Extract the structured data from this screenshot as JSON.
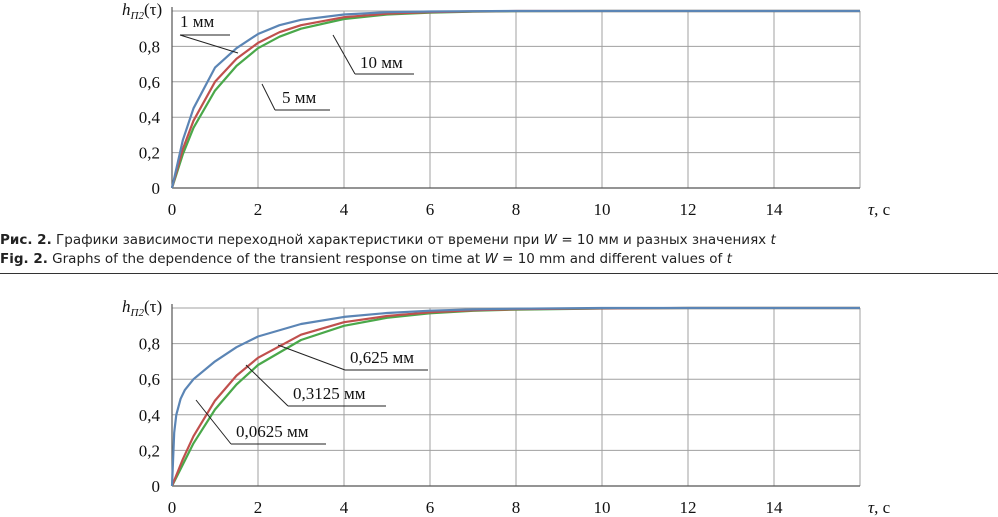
{
  "figures": [
    {
      "caption_ru": {
        "label": "Рис. 2.",
        "text_before": " Графики зависимости переходной характеристики от времени при ",
        "var1": "W",
        "text_mid": " = 10 мм и разных значениях ",
        "var2": "t"
      },
      "caption_en": {
        "label": "Fig. 2.",
        "text_before": " Graphs of the dependence of the transient response on time at ",
        "var1": "W",
        "text_mid": " = 10 mm and different values of ",
        "var2": "t"
      }
    }
  ],
  "colors": {
    "blue": "#5b85b5",
    "red": "#c0504d",
    "green": "#4aa84a",
    "grid": "#a0a0a0"
  },
  "chart_data": [
    {
      "type": "line",
      "ylabel": "h_П2(τ)",
      "xlabel": "τ, с",
      "xlim": [
        0,
        16
      ],
      "ylim": [
        0,
        1
      ],
      "xticks": [
        "0",
        "2",
        "4",
        "6",
        "8",
        "10",
        "12",
        "14"
      ],
      "yticks": [
        "0",
        "0,2",
        "0,4",
        "0,6",
        "0,8"
      ],
      "series": [
        {
          "name": "1 мм",
          "color": "blue",
          "x": [
            0,
            0.25,
            0.5,
            1,
            1.5,
            2,
            2.5,
            3,
            4,
            5,
            6,
            7,
            8,
            10,
            12,
            14,
            16
          ],
          "y": [
            0,
            0.27,
            0.45,
            0.68,
            0.79,
            0.87,
            0.92,
            0.95,
            0.98,
            0.993,
            0.997,
            0.999,
            1,
            1,
            1,
            1,
            1
          ]
        },
        {
          "name": "5 мм",
          "color": "red",
          "x": [
            0,
            0.25,
            0.5,
            1,
            1.5,
            2,
            2.5,
            3,
            4,
            5,
            6,
            7,
            8,
            10,
            12,
            14,
            16
          ],
          "y": [
            0,
            0.22,
            0.38,
            0.6,
            0.73,
            0.82,
            0.88,
            0.92,
            0.965,
            0.985,
            0.994,
            0.998,
            1,
            1,
            1,
            1,
            1
          ]
        },
        {
          "name": "10 мм",
          "color": "green",
          "x": [
            0,
            0.25,
            0.5,
            1,
            1.5,
            2,
            2.5,
            3,
            4,
            5,
            6,
            7,
            8,
            10,
            12,
            14,
            16
          ],
          "y": [
            0,
            0.19,
            0.34,
            0.55,
            0.69,
            0.79,
            0.855,
            0.9,
            0.955,
            0.98,
            0.991,
            0.996,
            0.999,
            1,
            1,
            1,
            1
          ]
        }
      ],
      "annotations": [
        "1 мм",
        "10 мм",
        "5 мм"
      ]
    },
    {
      "type": "line",
      "ylabel": "h_П2(τ)",
      "xlabel": "τ, с",
      "xlim": [
        0,
        16
      ],
      "ylim": [
        0,
        1
      ],
      "xticks": [
        "0",
        "2",
        "4",
        "6",
        "8",
        "10",
        "12",
        "14"
      ],
      "yticks": [
        "0",
        "0,2",
        "0,4",
        "0,6",
        "0,8"
      ],
      "series": [
        {
          "name": "0,0625 мм",
          "color": "blue",
          "x": [
            0,
            0.05,
            0.1,
            0.2,
            0.3,
            0.5,
            1,
            1.5,
            2,
            3,
            4,
            5,
            6,
            7,
            8,
            10,
            12,
            14,
            16
          ],
          "y": [
            0,
            0.3,
            0.4,
            0.49,
            0.54,
            0.6,
            0.7,
            0.78,
            0.84,
            0.91,
            0.95,
            0.972,
            0.985,
            0.992,
            0.996,
            1,
            1,
            1,
            1
          ]
        },
        {
          "name": "0,3125 мм",
          "color": "red",
          "x": [
            0,
            0.25,
            0.5,
            1,
            1.5,
            2,
            3,
            4,
            5,
            6,
            7,
            8,
            10,
            12,
            14,
            16
          ],
          "y": [
            0,
            0.15,
            0.28,
            0.48,
            0.62,
            0.72,
            0.85,
            0.92,
            0.955,
            0.976,
            0.987,
            0.993,
            0.998,
            1,
            1,
            1
          ]
        },
        {
          "name": "0,625 мм",
          "color": "green",
          "x": [
            0,
            0.25,
            0.5,
            1,
            1.5,
            2,
            3,
            4,
            5,
            6,
            7,
            8,
            10,
            12,
            14,
            16
          ],
          "y": [
            0,
            0.12,
            0.24,
            0.43,
            0.57,
            0.68,
            0.82,
            0.9,
            0.945,
            0.97,
            0.984,
            0.991,
            0.997,
            1,
            1,
            1
          ]
        }
      ],
      "annotations": [
        "0,625 мм",
        "0,3125 мм",
        "0,0625 мм"
      ]
    }
  ]
}
